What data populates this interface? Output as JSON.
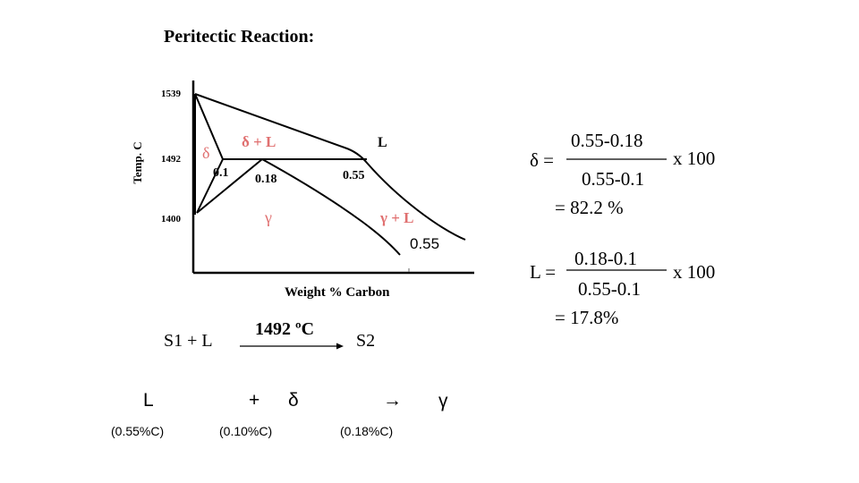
{
  "title": "Peritectic Reaction:",
  "phase_diagram": {
    "y_axis_label": "Temp. C",
    "x_axis_label": "Weight % Carbon",
    "y_ticks": [
      "1539",
      "1492",
      "1400"
    ],
    "regions": {
      "delta": "δ",
      "delta_plus_liquid": "δ + L",
      "liquid": "L",
      "gamma": "γ",
      "gamma_plus_liquid": "γ + L"
    },
    "compositions": {
      "c1": "0.1",
      "c2": "0.18",
      "c3": "0.55",
      "c4": "0.55"
    }
  },
  "reaction": {
    "reactants": "S1 + L",
    "temperature": "1492 ºC",
    "product": "S2"
  },
  "equation": {
    "liquid": "L",
    "plus": "+",
    "delta": "δ",
    "arrow": "→",
    "gamma": "γ",
    "liquid_comp": "(0.55%C)",
    "delta_comp": "(0.10%C)",
    "gamma_comp": "(0.18%C)"
  },
  "lever_rule": {
    "delta": {
      "lhs": "δ =",
      "numerator": "0.55-0.18",
      "denominator": "0.55-0.1",
      "multiplier": "x  100",
      "result": "= 82.2 %"
    },
    "liquid": {
      "lhs": "L =",
      "numerator": "0.18-0.1",
      "denominator": "0.55-0.1",
      "multiplier": "x  100",
      "result": "= 17.8%"
    }
  }
}
